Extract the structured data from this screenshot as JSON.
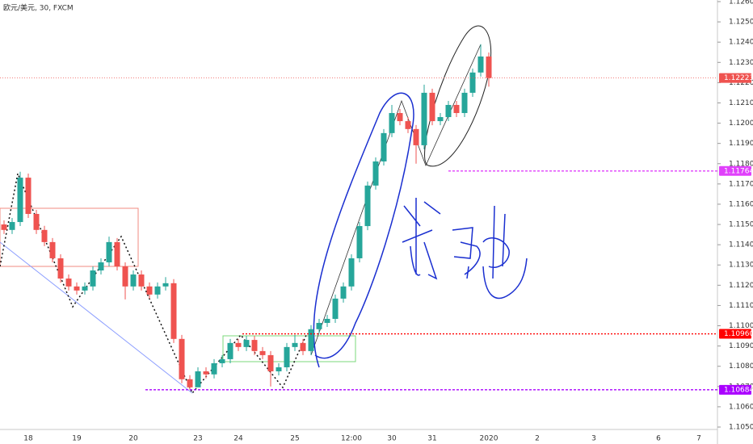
{
  "chart_data": {
    "type": "candlestick",
    "title": "欧元/美元, 30, FXCM",
    "up_color": "#26a69a",
    "down_color": "#ef5350",
    "grid": false,
    "categories": [
      null,
      null,
      null,
      "18",
      null,
      null,
      null,
      null,
      null,
      "19",
      null,
      null,
      null,
      null,
      null,
      null,
      "20",
      null,
      null,
      null,
      null,
      null,
      null,
      null,
      "23",
      null,
      null,
      null,
      null,
      "24",
      null,
      null,
      null,
      null,
      null,
      null,
      "25",
      null,
      null,
      null,
      null,
      null,
      null,
      "12:00",
      null,
      null,
      null,
      null,
      "30",
      null,
      null,
      null,
      null,
      "31",
      null,
      null,
      null,
      null,
      null,
      null,
      "2020",
      null,
      null,
      null,
      null,
      null,
      "2",
      null,
      null,
      null,
      null,
      null,
      null,
      "3",
      null,
      null,
      null,
      null,
      null,
      null,
      null,
      "6",
      null,
      null,
      null,
      null,
      "7",
      null,
      null
    ],
    "open": [
      1.115,
      1.11473,
      1.11512,
      1.11731,
      1.11552,
      1.11473,
      1.11413,
      1.11333,
      1.11233,
      1.11194,
      1.11174,
      1.11194,
      1.11273,
      1.11313,
      1.11413,
      1.11293,
      1.11194,
      1.11253,
      1.11194,
      1.11154,
      1.11194,
      1.1121,
      1.10935,
      1.10736,
      1.10696,
      1.10775,
      1.1076,
      1.10815,
      1.10835,
      1.10915,
      1.10895,
      1.1093,
      1.10875,
      1.10855,
      1.10775,
      1.10795,
      1.10895,
      1.10915,
      1.10875,
      1.10983,
      1.11014,
      1.11034,
      1.11134,
      1.11194,
      1.11333,
      1.11492,
      1.11692,
      1.11811,
      1.11951,
      1.1205,
      1.1201,
      1.11971,
      1.11891,
      1.1215,
      1.1201,
      1.1203,
      1.1209,
      1.1205,
      1.1215,
      1.1225,
      1.12329,
      null,
      null,
      null,
      null,
      null,
      null,
      null,
      null,
      null,
      null,
      null,
      null,
      null,
      null,
      null,
      null,
      null,
      null,
      null,
      null,
      null,
      null,
      null,
      null,
      null,
      null,
      null,
      null
    ],
    "high": [
      1.1152,
      1.11532,
      1.1176,
      1.11751,
      1.11572,
      1.11493,
      1.11433,
      1.11353,
      1.11253,
      1.11214,
      1.11214,
      1.11293,
      1.11333,
      1.1144,
      1.11433,
      1.11313,
      1.11273,
      1.11273,
      1.11214,
      1.11214,
      1.1124,
      1.1123,
      1.10955,
      1.10756,
      1.10795,
      1.10795,
      1.10835,
      1.10855,
      1.10935,
      1.10935,
      1.1095,
      1.1095,
      1.10895,
      1.10875,
      1.10815,
      1.10915,
      1.10955,
      1.10935,
      1.11003,
      1.11034,
      1.11054,
      1.11154,
      1.11214,
      1.11353,
      1.11512,
      1.11712,
      1.11831,
      1.11971,
      1.1209,
      1.1207,
      1.1203,
      1.11991,
      1.1219,
      1.1217,
      1.1205,
      1.1211,
      1.1211,
      1.1217,
      1.1227,
      1.1239,
      1.12349,
      null,
      null,
      null,
      null,
      null,
      null,
      null,
      null,
      null,
      null,
      null,
      null,
      null,
      null,
      null,
      null,
      null,
      null,
      null,
      null,
      null,
      null,
      null,
      null,
      null,
      null,
      null,
      null
    ],
    "low": [
      1.11453,
      1.11453,
      1.11492,
      1.11532,
      1.11453,
      1.11393,
      1.11313,
      1.11213,
      1.11174,
      1.11154,
      1.11154,
      1.11174,
      1.11253,
      1.11293,
      1.11273,
      1.1113,
      1.11174,
      1.11174,
      1.11134,
      1.11134,
      1.11174,
      1.10915,
      1.10716,
      1.10684,
      1.107,
      1.1074,
      1.1074,
      1.10795,
      1.10815,
      1.10875,
      1.10875,
      1.10855,
      1.10835,
      1.107,
      1.10755,
      1.10775,
      1.10875,
      1.10855,
      1.10855,
      1.10963,
      1.10994,
      1.11014,
      1.11114,
      1.11174,
      1.11313,
      1.11472,
      1.11672,
      1.11791,
      1.11931,
      1.1199,
      1.11951,
      1.118,
      1.11871,
      1.1199,
      1.1199,
      1.1201,
      1.1203,
      1.1203,
      1.1213,
      1.1223,
      1.1218,
      null,
      null,
      null,
      null,
      null,
      null,
      null,
      null,
      null,
      null,
      null,
      null,
      null,
      null,
      null,
      null,
      null,
      null,
      null,
      null,
      null,
      null,
      null,
      null,
      null,
      null,
      null,
      null
    ],
    "close": [
      1.11473,
      1.11512,
      1.11731,
      1.11552,
      1.11473,
      1.11413,
      1.11333,
      1.11233,
      1.11194,
      1.11174,
      1.11194,
      1.11273,
      1.11313,
      1.11413,
      1.11293,
      1.11194,
      1.11253,
      1.11194,
      1.11154,
      1.11194,
      1.1121,
      1.10935,
      1.10736,
      1.10696,
      1.10775,
      1.1076,
      1.10815,
      1.10835,
      1.10915,
      1.10895,
      1.1093,
      1.10875,
      1.10855,
      1.10775,
      1.10795,
      1.10895,
      1.10915,
      1.10875,
      1.10983,
      1.11014,
      1.11034,
      1.11134,
      1.11194,
      1.11333,
      1.11492,
      1.11692,
      1.11811,
      1.11951,
      1.1205,
      1.1201,
      1.11971,
      1.11891,
      1.1215,
      1.1201,
      1.1203,
      1.1209,
      1.1205,
      1.1215,
      1.1225,
      1.12329,
      1.12223,
      null,
      null,
      null,
      null,
      null,
      null,
      null,
      null,
      null,
      null,
      null,
      null,
      null,
      null,
      null,
      null,
      null,
      null,
      null,
      null,
      null,
      null,
      null,
      null,
      null,
      null,
      null,
      null
    ],
    "ylim": [
      1.105,
      1.126
    ],
    "yticks": [
      {
        "value": 1.105,
        "label": "1.10500"
      },
      {
        "value": 1.106,
        "label": "1.10600"
      },
      {
        "value": 1.107,
        "label": "1.10700"
      },
      {
        "value": 1.108,
        "label": "1.10800"
      },
      {
        "value": 1.109,
        "label": "1.10900"
      },
      {
        "value": 1.11,
        "label": "1.11000"
      },
      {
        "value": 1.111,
        "label": "1.11100"
      },
      {
        "value": 1.112,
        "label": "1.11200"
      },
      {
        "value": 1.113,
        "label": "1.11300"
      },
      {
        "value": 1.114,
        "label": "1.11400"
      },
      {
        "value": 1.115,
        "label": "1.11500"
      },
      {
        "value": 1.116,
        "label": "1.11600"
      },
      {
        "value": 1.117,
        "label": "1.11700"
      },
      {
        "value": 1.118,
        "label": "1.11800"
      },
      {
        "value": 1.119,
        "label": "1.11900"
      },
      {
        "value": 1.12,
        "label": "1.12000"
      },
      {
        "value": 1.121,
        "label": "1.12100"
      },
      {
        "value": 1.122,
        "label": "1.12200"
      },
      {
        "value": 1.123,
        "label": "1.12300"
      },
      {
        "value": 1.124,
        "label": "1.12400"
      },
      {
        "value": 1.125,
        "label": "1.12500"
      },
      {
        "value": 1.126,
        "label": "1.12600"
      }
    ],
    "levels": [
      {
        "value": 1.12223,
        "label": "1.12223",
        "color": "#ef5350"
      },
      {
        "value": 1.11764,
        "label": "1.11764",
        "color": "#e040fb"
      },
      {
        "value": 1.1096,
        "label": "1.10960",
        "color": "#ff0000"
      },
      {
        "value": 1.10684,
        "label": "1.10684",
        "color": "#aa00ff"
      }
    ]
  }
}
